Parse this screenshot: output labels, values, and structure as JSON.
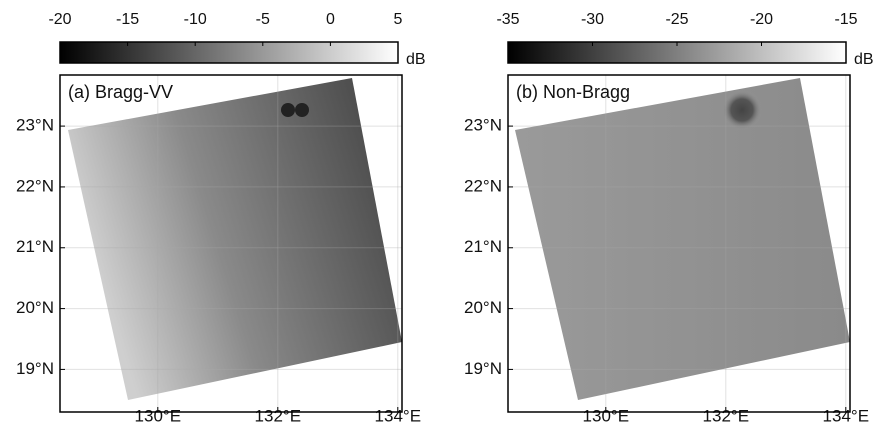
{
  "chart_data": [
    {
      "type": "image",
      "title": "(a) Bragg-VV",
      "colorbar": {
        "label": "dB",
        "lim": [
          -20,
          5
        ],
        "ticks": [
          -20,
          -15,
          -10,
          -5,
          0,
          5
        ]
      },
      "xlim": [
        128.37,
        134.07
      ],
      "xticks": [
        {
          "value": 130,
          "label": "130°E"
        },
        {
          "value": 132,
          "label": "132°E"
        },
        {
          "value": 134,
          "label": "134°E"
        }
      ],
      "ylim": [
        18.3,
        23.84
      ],
      "yticks": [
        {
          "value": 19,
          "label": "19°N"
        },
        {
          "value": 20,
          "label": "20°N"
        },
        {
          "value": 21,
          "label": "21°N"
        },
        {
          "value": 22,
          "label": "22°N"
        },
        {
          "value": 23,
          "label": "23°N"
        }
      ],
      "grid": true
    },
    {
      "type": "image",
      "title": "(b) Non-Bragg",
      "colorbar": {
        "label": "dB",
        "lim": [
          -35,
          -15
        ],
        "ticks": [
          -35,
          -30,
          -25,
          -20,
          -15
        ]
      },
      "xlim": [
        128.37,
        134.07
      ],
      "xticks": [
        {
          "value": 130,
          "label": "130°E"
        },
        {
          "value": 132,
          "label": "132°E"
        },
        {
          "value": 134,
          "label": "134°E"
        }
      ],
      "ylim": [
        18.3,
        23.84
      ],
      "yticks": [
        {
          "value": 19,
          "label": "19°N"
        },
        {
          "value": 20,
          "label": "20°N"
        },
        {
          "value": 21,
          "label": "21°N"
        },
        {
          "value": 22,
          "label": "22°N"
        },
        {
          "value": 23,
          "label": "23°N"
        }
      ],
      "grid": true
    }
  ]
}
